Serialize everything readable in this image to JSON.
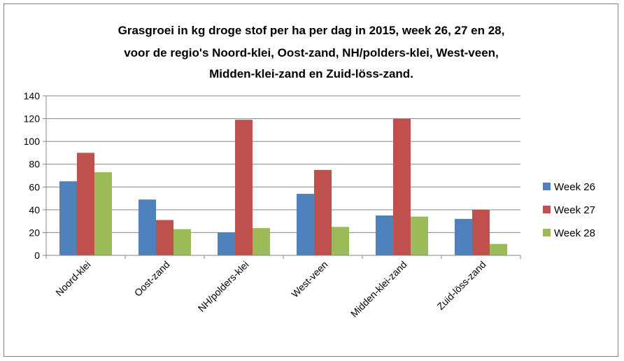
{
  "chart_data": {
    "type": "bar",
    "title": [
      "Grasgroei in kg droge stof per ha per dag in 2015, week 26, 27 en 28,",
      "voor de regio's Noord-klei, Oost-zand, NH/polders-klei, West-veen,",
      "Midden-klei-zand en Zuid-löss-zand."
    ],
    "categories": [
      "Noord-klei",
      "Oost-zand",
      "NH/polders-klei",
      "West-veen",
      "Midden-klei-zand",
      "Zuid-löss-zand"
    ],
    "series": [
      {
        "name": "Week 26",
        "color": "#4F81BD",
        "values": [
          65,
          49,
          20,
          54,
          35,
          32
        ]
      },
      {
        "name": "Week 27",
        "color": "#C0504D",
        "values": [
          90,
          31,
          119,
          75,
          120,
          40
        ]
      },
      {
        "name": "Week 28",
        "color": "#9BBB59",
        "values": [
          73,
          23,
          24,
          25,
          34,
          10
        ]
      }
    ],
    "ylim": [
      0,
      140
    ],
    "yticks": [
      0,
      20,
      40,
      60,
      80,
      100,
      120,
      140
    ],
    "xlabel": "",
    "ylabel": "",
    "grid": true,
    "legend_position": "right"
  }
}
